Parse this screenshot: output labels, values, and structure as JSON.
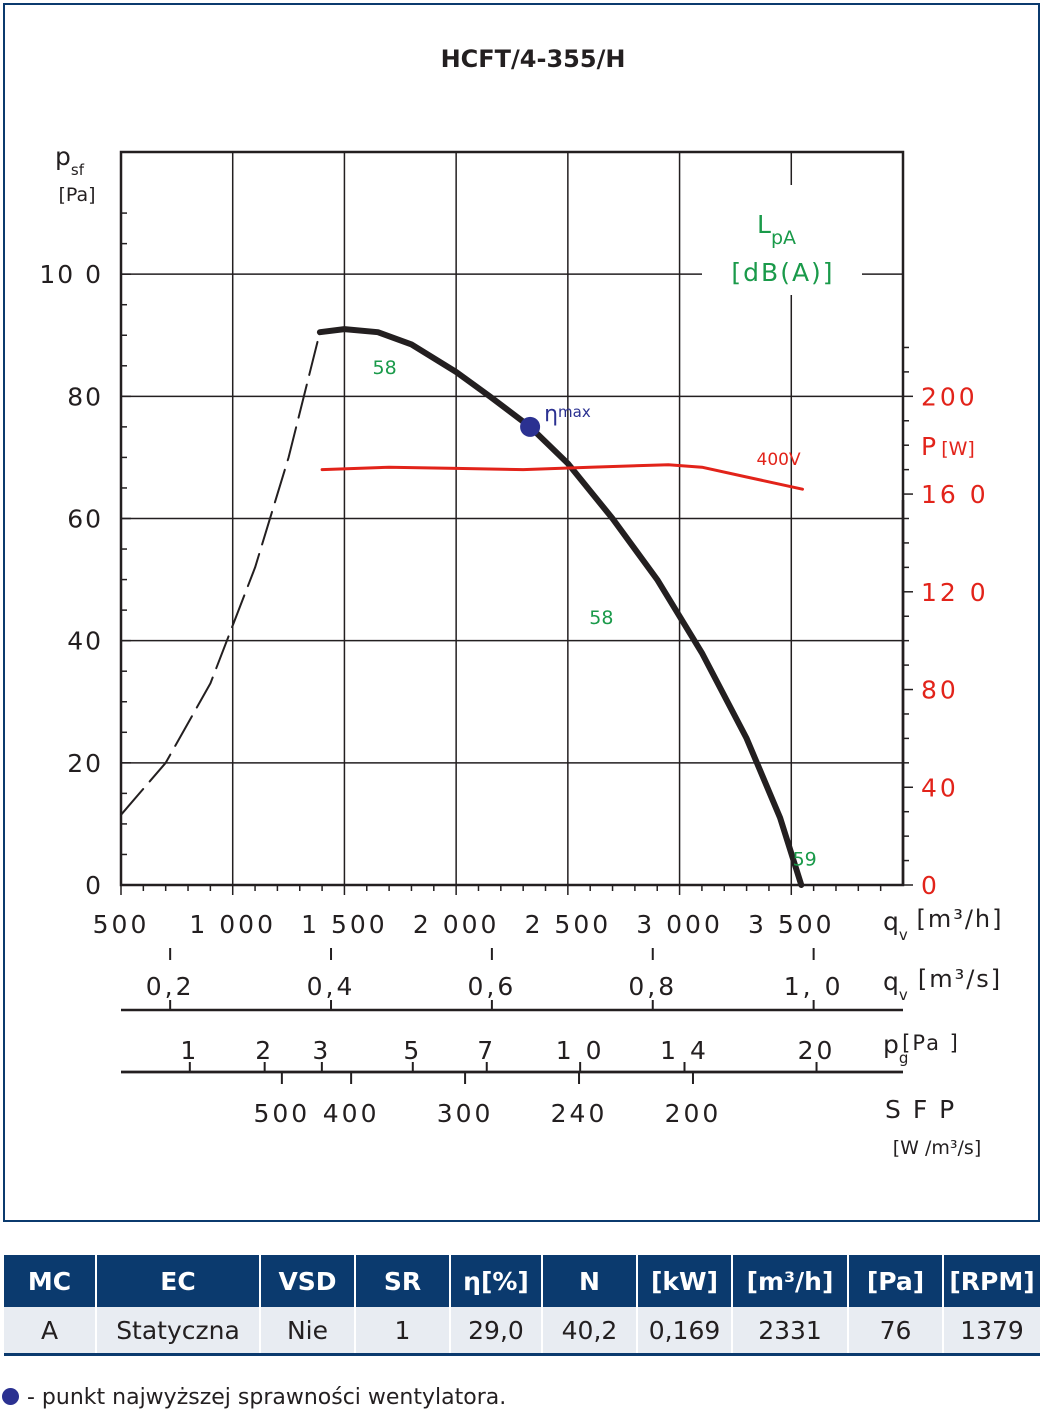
{
  "chart_data": {
    "type": "line",
    "title": "HCFT/4-355/H",
    "y_label": "p",
    "y_label_sub": "sf",
    "y_unit": "[Pa]",
    "x_label": "q",
    "x_label_sub": "v",
    "x_unit": "[m³/h]",
    "ylim": [
      0,
      120
    ],
    "xlim": [
      500,
      4000
    ],
    "y_ticks": [
      "0",
      "20",
      "40",
      "60",
      "80",
      "10 0"
    ],
    "y_tick_values": [
      0,
      20,
      40,
      60,
      80,
      100
    ],
    "x_ticks": [
      "500",
      "1 000",
      "1 500",
      "2 000",
      "2 500",
      "3 000",
      "3 500"
    ],
    "x_tick_values": [
      500,
      1000,
      1500,
      2000,
      2500,
      3000,
      3500
    ],
    "grid": true,
    "right_axis": {
      "label": "P",
      "unit": "[W]",
      "ylim": [
        0,
        300
      ],
      "ticks": [
        "0",
        "40",
        "80",
        "12 0",
        "16 0",
        "200"
      ],
      "tick_values": [
        0,
        40,
        80,
        120,
        160,
        200
      ],
      "color": "#e2231a"
    },
    "sound_label": "L",
    "sound_label_sub": "pA",
    "sound_unit": "[dB(A)]",
    "sound_color": "#1a9a4a",
    "series": [
      {
        "style": "dashed",
        "color": "#231f20",
        "axis": "left",
        "points": [
          [
            500,
            11.5
          ],
          [
            700,
            20
          ],
          [
            900,
            33
          ],
          [
            1100,
            52
          ],
          [
            1250,
            70
          ],
          [
            1390,
            90.5
          ]
        ]
      },
      {
        "style": "solid",
        "color": "#231f20",
        "axis": "left",
        "points": [
          [
            1390,
            90.5
          ],
          [
            1500,
            91
          ],
          [
            1650,
            90.5
          ],
          [
            1800,
            88.5
          ],
          [
            2000,
            84
          ],
          [
            2150,
            80
          ],
          [
            2331,
            75
          ],
          [
            2500,
            69
          ],
          [
            2700,
            60
          ],
          [
            2900,
            50
          ],
          [
            3100,
            38
          ],
          [
            3300,
            24
          ],
          [
            3450,
            11
          ],
          [
            3545,
            0
          ]
        ]
      },
      {
        "name": "400V",
        "style": "solid",
        "color": "#e2231a",
        "axis": "right",
        "points": [
          [
            1400,
            170
          ],
          [
            1700,
            171
          ],
          [
            2000,
            170.5
          ],
          [
            2300,
            170
          ],
          [
            2600,
            171
          ],
          [
            2950,
            172
          ],
          [
            3100,
            171
          ],
          [
            3300,
            167
          ],
          [
            3550,
            162
          ]
        ]
      }
    ],
    "sound_labels": [
      {
        "text": "58",
        "x": 1680,
        "y": 85
      },
      {
        "text": "58",
        "x": 2650,
        "y": 44
      },
      {
        "text": "59",
        "x": 3560,
        "y": 4.5
      }
    ],
    "eta_point": {
      "x": 2331,
      "y": 75,
      "label": "η",
      "label_sub": "max",
      "color": "#2b3191"
    },
    "extra_axes": [
      {
        "unit_label": "q",
        "unit_sub": "v",
        "unit": "[m³/s]",
        "ticks": [
          {
            "label": "0,2",
            "q": 720
          },
          {
            "label": "0,4",
            "q": 1440
          },
          {
            "label": "0,6",
            "q": 2160
          },
          {
            "label": "0,8",
            "q": 2880
          },
          {
            "label": "1, 0",
            "q": 3600
          }
        ]
      },
      {
        "unit_label": "p",
        "unit_sub": "g",
        "unit": "[Pa ]",
        "ticks": [
          {
            "label": "1",
            "q": 808
          },
          {
            "label": "2",
            "q": 1143
          },
          {
            "label": "3",
            "q": 1399
          },
          {
            "label": "5",
            "q": 1806
          },
          {
            "label": "7",
            "q": 2137
          },
          {
            "label": "1 0",
            "q": 2555
          },
          {
            "label": "1 4",
            "q": 3022
          },
          {
            "label": "20",
            "q": 3613
          }
        ]
      },
      {
        "unit_label": "S F P",
        "unit": "[W /m³/s]",
        "ticks": [
          {
            "label": "500",
            "q": 1220
          },
          {
            "label": "400",
            "q": 1530
          },
          {
            "label": "300",
            "q": 2040
          },
          {
            "label": "240",
            "q": 2550
          },
          {
            "label": "200",
            "q": 3060
          }
        ]
      }
    ]
  },
  "table": {
    "headers": [
      "MC",
      "EC",
      "VSD",
      "SR",
      "η[%]",
      "N",
      "[kW]",
      "[m³/h]",
      "[Pa]",
      "[RPM]"
    ],
    "row": [
      "A",
      "Statyczna",
      "Nie",
      "1",
      "29,0",
      "40,2",
      "0,169",
      "2331",
      "76",
      "1379"
    ]
  },
  "footnote": "- punkt najwyższej sprawności wentylatora."
}
